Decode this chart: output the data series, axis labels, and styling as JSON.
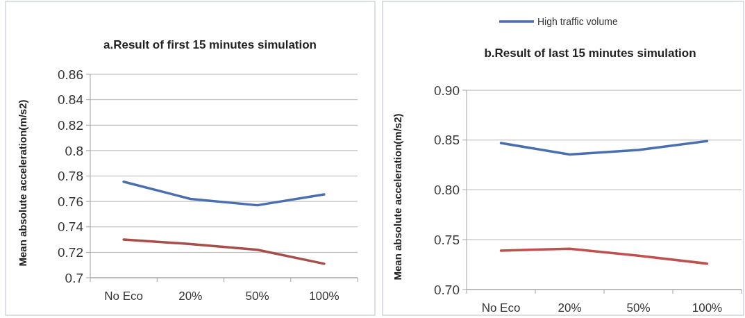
{
  "chart_data": [
    {
      "type": "line",
      "title": "a.Result of first 15 minutes simulation",
      "ylabel": "Mean  absolute acceleration(m/s2)",
      "categories": [
        "No Eco",
        "20%",
        "50%",
        "100%"
      ],
      "series": [
        {
          "color": "#4a6fb0",
          "values": [
            0.7755,
            0.762,
            0.757,
            0.7655
          ]
        },
        {
          "color": "#a84e4a",
          "values": [
            0.73,
            0.7265,
            0.722,
            0.711
          ]
        }
      ],
      "ylim": [
        0.7,
        0.86
      ],
      "yticks": [
        0.7,
        0.72,
        0.74,
        0.76,
        0.78,
        0.8,
        0.82,
        0.84,
        0.86
      ],
      "grid": "y",
      "legend": false
    },
    {
      "type": "line",
      "title": "b.Result of last 15 minutes simulation",
      "ylabel": "Mean  absolute acceleration(m/s2)",
      "categories": [
        "No Eco",
        "20%",
        "50%",
        "100%"
      ],
      "series": [
        {
          "name": "High traffic volume",
          "color": "#4a6fb0",
          "values": [
            0.847,
            0.8355,
            0.84,
            0.849
          ]
        },
        {
          "color": "#c0504d",
          "values": [
            0.739,
            0.741,
            0.734,
            0.726
          ]
        }
      ],
      "ylim": [
        0.7,
        0.9
      ],
      "yticks": [
        {
          "value": 0.7,
          "label": "0.70"
        },
        {
          "value": 0.75,
          "label": "0.75"
        },
        {
          "value": 0.8,
          "label": "0.80"
        },
        {
          "value": 0.85,
          "label": "0.85"
        },
        {
          "value": 0.9,
          "label": "0.90"
        }
      ],
      "grid": "y",
      "legend": "top"
    }
  ]
}
